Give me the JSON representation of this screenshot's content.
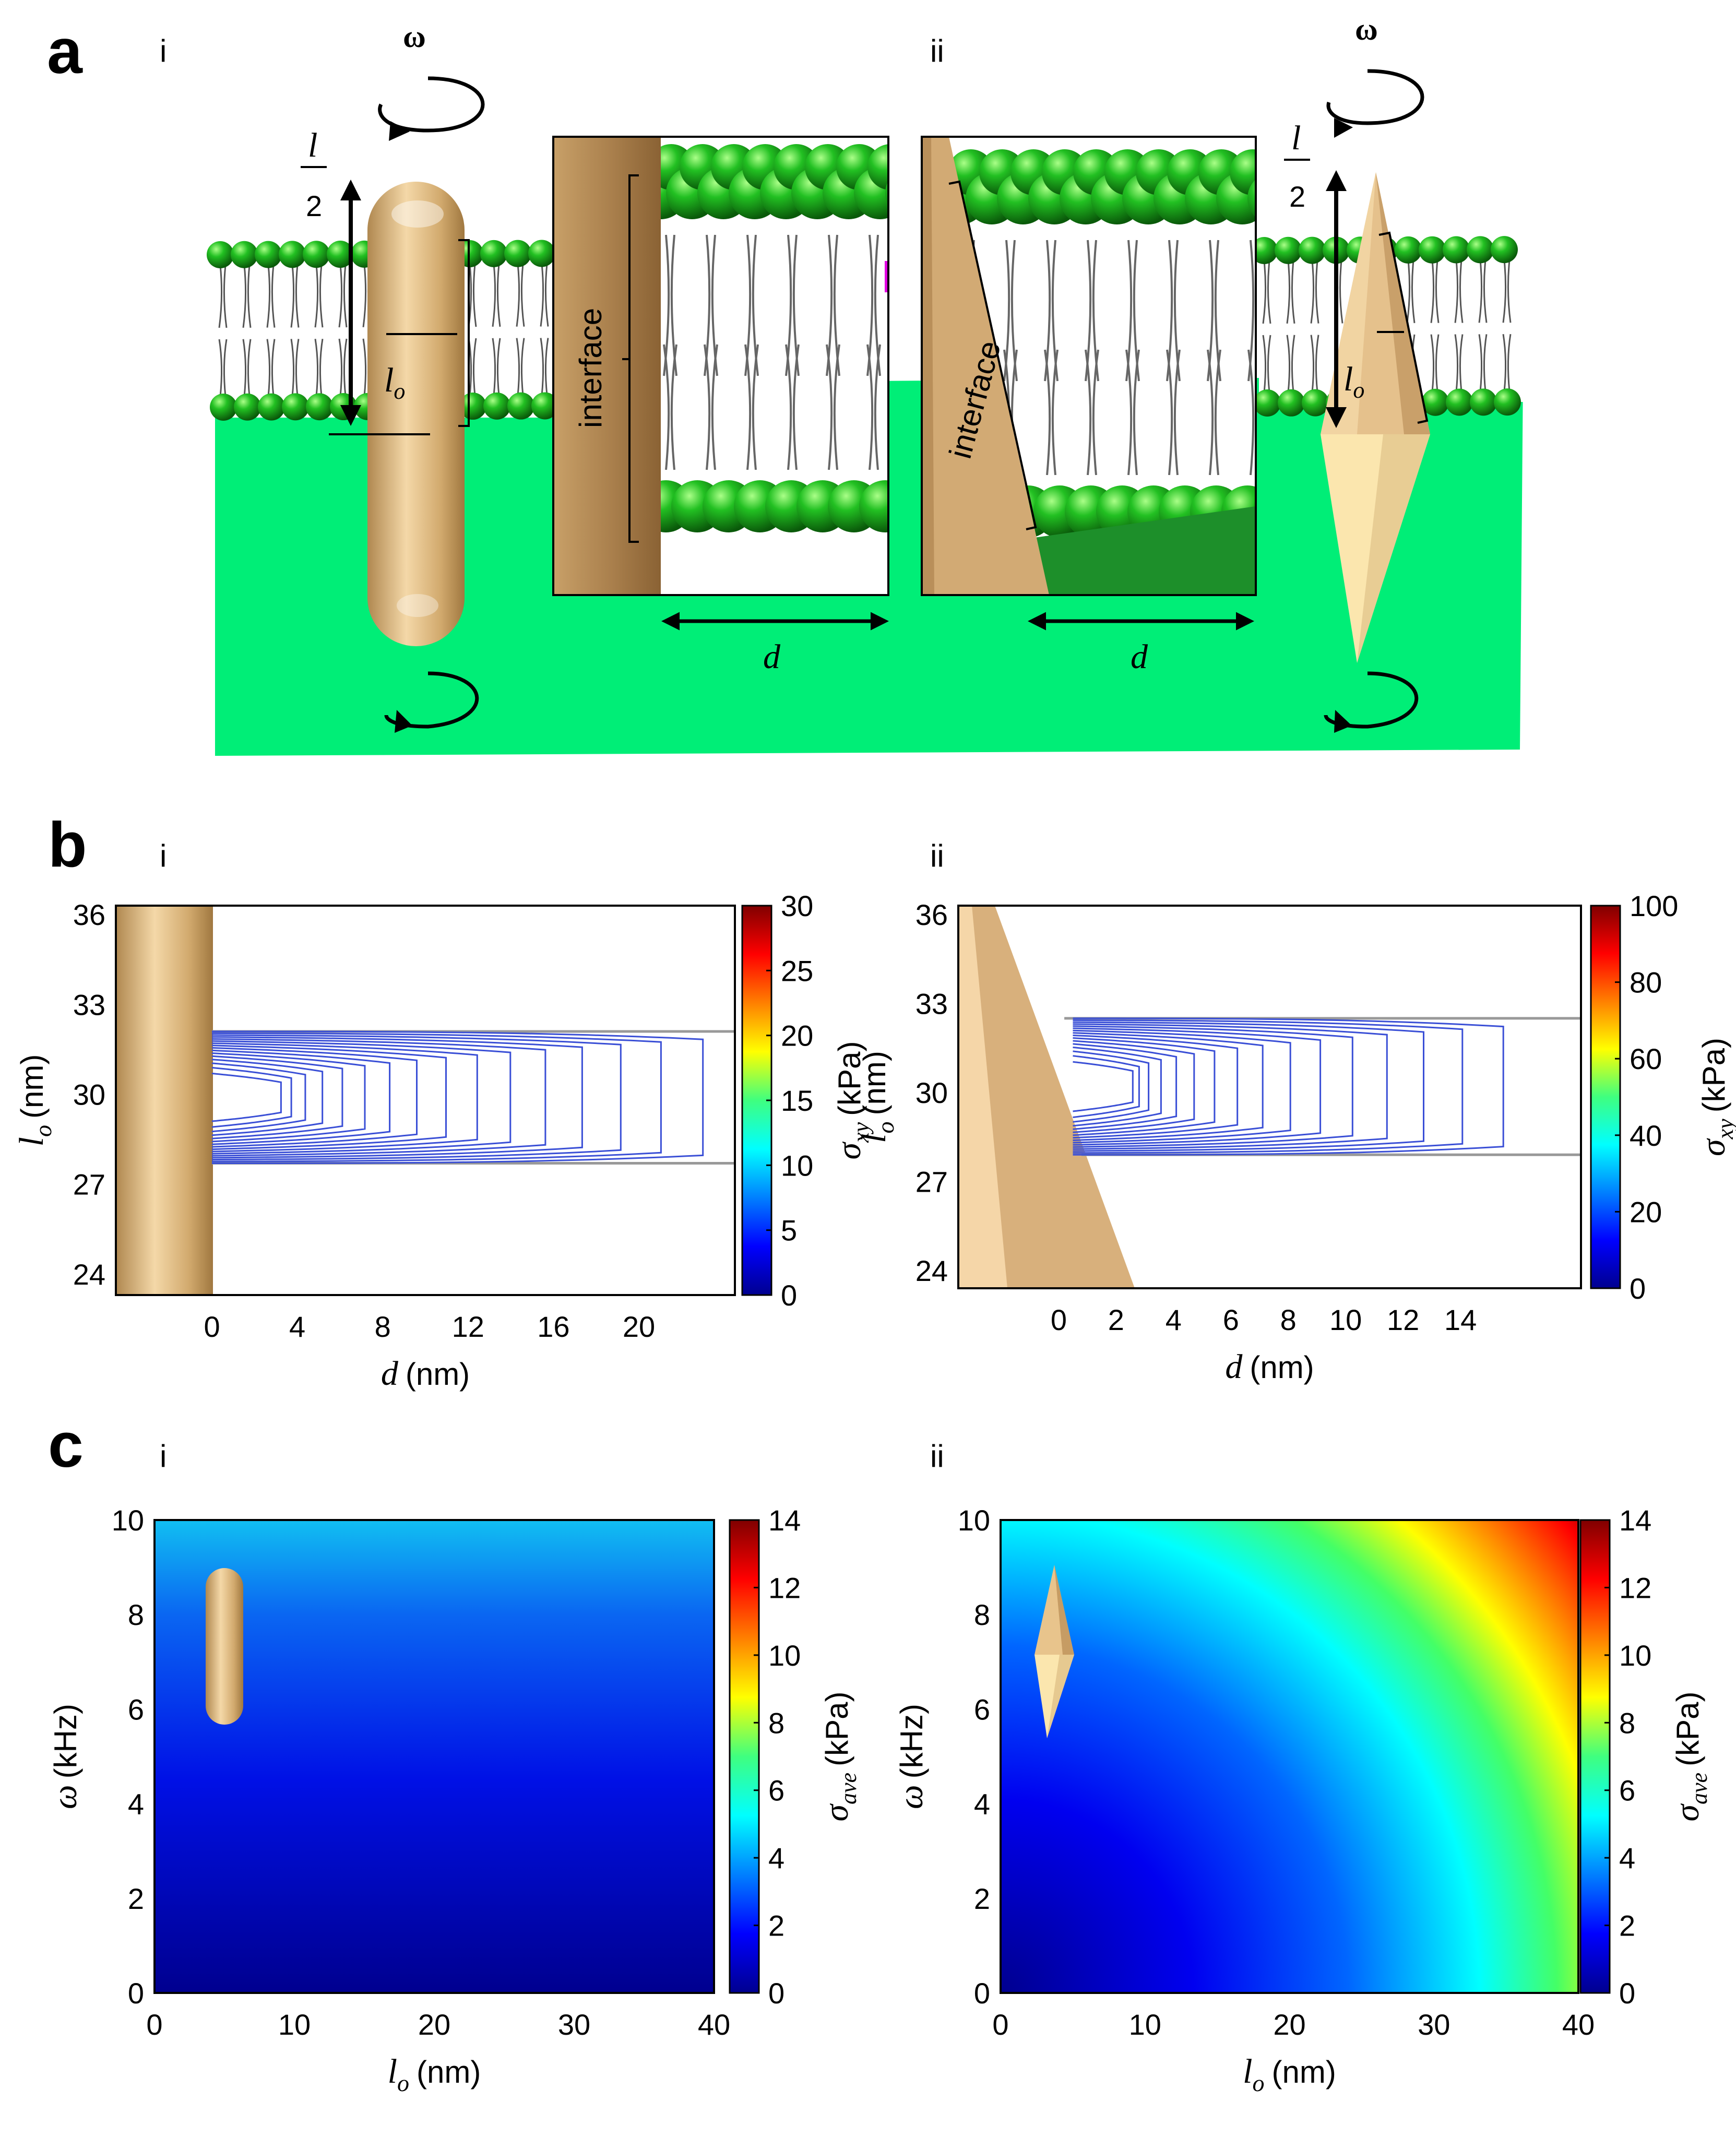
{
  "panels": {
    "a": {
      "label": "a",
      "sub_i": "i",
      "sub_ii": "ii",
      "omega": "ω",
      "l": "l",
      "two": "2",
      "lo": "l",
      "lo_sub": "o",
      "interface": "interface",
      "d": "d"
    },
    "b": {
      "label": "b",
      "sub_i": "i",
      "sub_ii": "ii"
    },
    "c": {
      "label": "c",
      "sub_i": "i",
      "sub_ii": "ii"
    }
  },
  "colors": {
    "membrane_green": "#00ee77",
    "head_green": "#1fa81f",
    "gold": "#d8b47e",
    "cone_light": "#fbe6ae",
    "contour_blue": "#3a4fd6"
  },
  "chart_data": [
    {
      "id": "b-i",
      "type": "contour",
      "xlabel": "d",
      "xunit": "(nm)",
      "ylabel": "l",
      "ylabel_sub": "o",
      "yunit": "(nm)",
      "xticks": [
        0,
        4,
        8,
        12,
        16,
        20
      ],
      "yticks": [
        24,
        27,
        30,
        33,
        36
      ],
      "xlim": [
        -4.5,
        24.5
      ],
      "ylim": [
        23.3,
        36.3
      ],
      "membrane": [
        27.7,
        32.1
      ],
      "colorbar": {
        "label": "σ",
        "label_sub": "xy",
        "unit": "(kPa)",
        "ticks": [
          0,
          5,
          10,
          15,
          20,
          25,
          30
        ],
        "range": [
          0,
          30
        ]
      }
    },
    {
      "id": "b-ii",
      "type": "contour",
      "xlabel": "d",
      "xunit": "(nm)",
      "ylabel": "l",
      "ylabel_sub": "o",
      "yunit": "(nm)",
      "xticks": [
        0,
        2,
        4,
        6,
        8,
        10,
        12,
        14
      ],
      "yticks": [
        24,
        27,
        30,
        33,
        36
      ],
      "xlim": [
        -3.5,
        18.2
      ],
      "ylim": [
        23.4,
        36.3
      ],
      "membrane": [
        27.9,
        32.5
      ],
      "colorbar": {
        "label": "σ",
        "label_sub": "xy",
        "unit": "(kPa)",
        "ticks": [
          0,
          20,
          40,
          60,
          80,
          100
        ],
        "range": [
          0,
          100
        ]
      }
    },
    {
      "id": "c-i",
      "type": "heatmap",
      "xlabel": "l",
      "xlabel_sub": "o",
      "xunit": "(nm)",
      "ylabel": "ω",
      "yunit": "(kHz)",
      "xticks": [
        0,
        10,
        20,
        30,
        40
      ],
      "yticks": [
        0,
        2,
        4,
        6,
        8,
        10
      ],
      "xlim": [
        0,
        40
      ],
      "ylim": [
        0,
        10
      ],
      "colorbar": {
        "label": "σ",
        "label_sub": "ave",
        "unit": "(kPa)",
        "ticks": [
          0,
          2,
          4,
          6,
          8,
          10,
          12,
          14
        ],
        "range": [
          0,
          14
        ]
      }
    },
    {
      "id": "c-ii",
      "type": "heatmap",
      "xlabel": "l",
      "xlabel_sub": "o",
      "xunit": "(nm)",
      "ylabel": "ω",
      "yunit": "(kHz)",
      "xticks": [
        0,
        10,
        20,
        30,
        40
      ],
      "yticks": [
        0,
        2,
        4,
        6,
        8,
        10
      ],
      "xlim": [
        0,
        40
      ],
      "ylim": [
        0,
        10
      ],
      "colorbar": {
        "label": "σ",
        "label_sub": "ave",
        "unit": "(kPa)",
        "ticks": [
          0,
          2,
          4,
          6,
          8,
          10,
          12,
          14
        ],
        "range": [
          0,
          14
        ]
      }
    }
  ]
}
